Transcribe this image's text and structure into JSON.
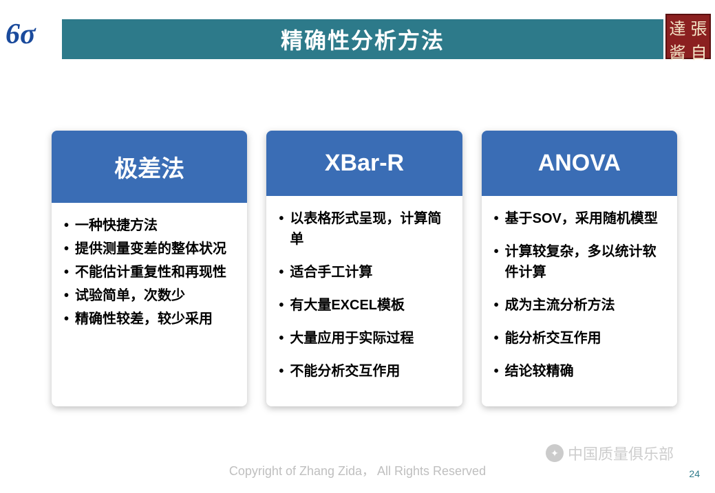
{
  "header": {
    "title": "精确性分析方法"
  },
  "logo_left": "6σ",
  "stamp": {
    "tl": "達",
    "tr": "張",
    "bl": "酱",
    "br": "自"
  },
  "cards": [
    {
      "title": "极差法",
      "spaced": false,
      "items": [
        "一种快捷方法",
        "提供测量变差的整体状况",
        "不能估计重复性和再现性",
        "试验简单，次数少",
        "精确性较差，较少采用"
      ]
    },
    {
      "title": "XBar-R",
      "spaced": true,
      "items": [
        "以表格形式呈现，计算简单",
        "适合手工计算",
        "有大量EXCEL模板",
        "大量应用于实际过程",
        "不能分析交互作用"
      ]
    },
    {
      "title": "ANOVA",
      "spaced": true,
      "items": [
        "基于SOV，采用随机模型",
        "计算较复杂，多以统计软件计算",
        "成为主流分析方法",
        "能分析交互作用",
        "结论较精确"
      ]
    }
  ],
  "copyright": "Copyright of Zhang Zida， All Rights Reserved",
  "page_number": "24",
  "watermark": "中国质量俱乐部",
  "colors": {
    "header_bg": "#2d7a8a",
    "card_header_bg": "#3a6db5",
    "logo_color": "#1a4a9c",
    "stamp_bg": "#8b2020",
    "text_color": "#000000",
    "copyright_color": "#bfbfbf"
  }
}
